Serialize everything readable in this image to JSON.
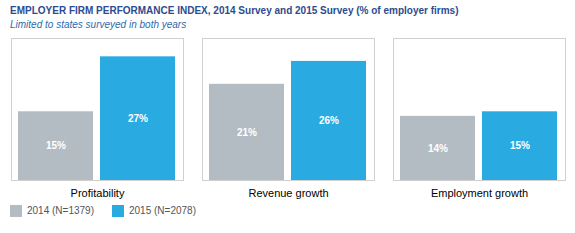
{
  "chart_data": {
    "type": "bar",
    "title": "EMPLOYER FIRM PERFORMANCE INDEX, 2014 Survey and 2015 Survey (% of employer firms)",
    "subtitle": "Limited to states surveyed in both years",
    "categories": [
      "Profitability",
      "Revenue growth",
      "Employment growth"
    ],
    "series": [
      {
        "name": "2014 (N=1379)",
        "color": "#b3bcc2",
        "values": [
          15,
          21,
          14
        ],
        "value_labels": [
          "15%",
          "21%",
          "14%"
        ]
      },
      {
        "name": "2015 (N=2078)",
        "color": "#29abe2",
        "values": [
          27,
          26,
          15
        ],
        "value_labels": [
          "27%",
          "26%",
          "15%"
        ]
      }
    ],
    "ylim": [
      0,
      31
    ],
    "grid": false,
    "legend": "bottom left",
    "data_labels": true,
    "tick_labels": "x"
  }
}
